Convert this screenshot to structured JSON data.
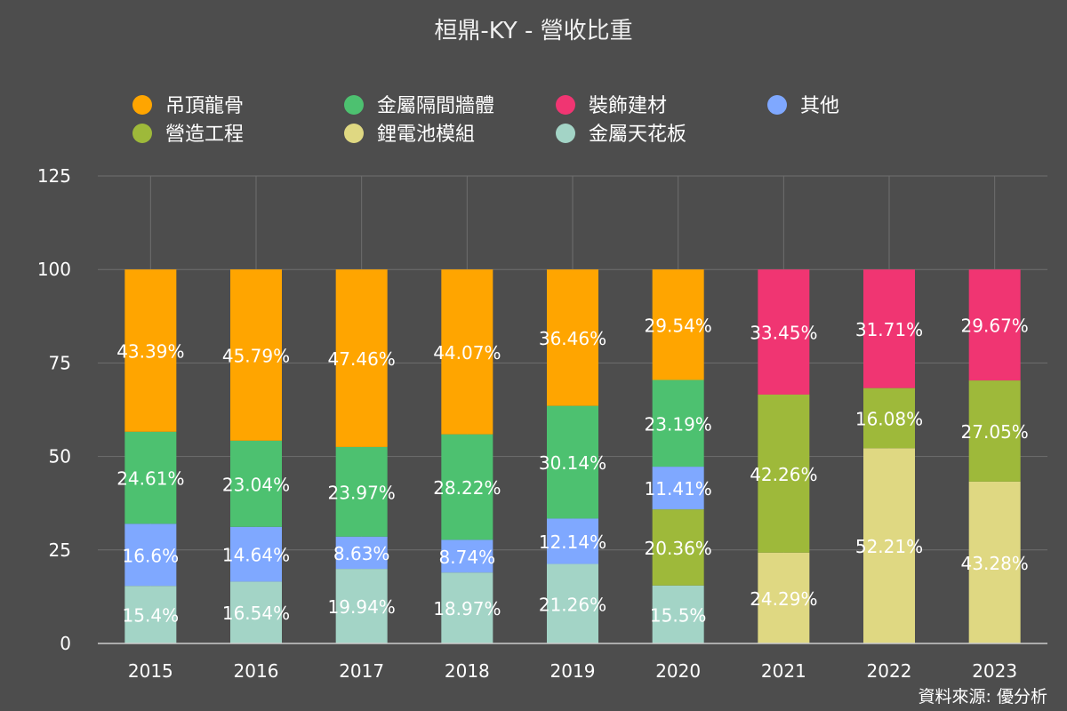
{
  "chart_data": {
    "type": "bar",
    "stacked": true,
    "title": "桓鼎-KY - 營收比重",
    "source": "資料來源: 優分析",
    "categories": [
      "2015",
      "2016",
      "2017",
      "2018",
      "2019",
      "2020",
      "2021",
      "2022",
      "2023"
    ],
    "ylim": [
      0,
      125
    ],
    "yticks": [
      0,
      25,
      50,
      75,
      100,
      125
    ],
    "grid": true,
    "legend_position": "top",
    "series": [
      {
        "name": "金屬天花板",
        "color": "#a3d4c6",
        "values": [
          15.4,
          16.54,
          19.94,
          18.97,
          21.26,
          15.5,
          null,
          null,
          null
        ],
        "labels": [
          "15.4%",
          "16.54%",
          "19.94%",
          "18.97%",
          "21.26%",
          "15.5%",
          null,
          null,
          null
        ]
      },
      {
        "name": "鋰電池模組",
        "color": "#dfd882",
        "values": [
          null,
          null,
          null,
          null,
          null,
          null,
          24.29,
          52.21,
          43.28
        ],
        "labels": [
          null,
          null,
          null,
          null,
          null,
          null,
          "24.29%",
          "52.21%",
          "43.28%"
        ]
      },
      {
        "name": "營造工程",
        "color": "#9eb93a",
        "values": [
          null,
          null,
          null,
          null,
          null,
          20.36,
          42.26,
          16.08,
          27.05
        ],
        "labels": [
          null,
          null,
          null,
          null,
          null,
          "20.36%",
          "42.26%",
          "16.08%",
          "27.05%"
        ]
      },
      {
        "name": "其他",
        "color": "#7fa8ff",
        "values": [
          16.6,
          14.64,
          8.63,
          8.74,
          12.14,
          11.41,
          null,
          null,
          null
        ],
        "labels": [
          "16.6%",
          "14.64%",
          "8.63%",
          "8.74%",
          "12.14%",
          "11.41%",
          null,
          null,
          null
        ]
      },
      {
        "name": "金屬隔間牆體",
        "color": "#4dc170",
        "values": [
          24.61,
          23.04,
          23.97,
          28.22,
          30.14,
          23.19,
          null,
          null,
          null
        ],
        "labels": [
          "24.61%",
          "23.04%",
          "23.97%",
          "28.22%",
          "30.14%",
          "23.19%",
          null,
          null,
          null
        ]
      },
      {
        "name": "吊頂龍骨",
        "color": "#ffa500",
        "values": [
          43.39,
          45.79,
          47.46,
          44.07,
          36.46,
          29.54,
          null,
          null,
          null
        ],
        "labels": [
          "43.39%",
          "45.79%",
          "47.46%",
          "44.07%",
          "36.46%",
          "29.54%",
          null,
          null,
          null
        ]
      },
      {
        "name": "裝飾建材",
        "color": "#f03572",
        "values": [
          null,
          null,
          null,
          null,
          null,
          null,
          33.45,
          31.71,
          29.67
        ],
        "labels": [
          null,
          null,
          null,
          null,
          null,
          null,
          "33.45%",
          "31.71%",
          "29.67%"
        ]
      }
    ],
    "legend_order": [
      "吊頂龍骨",
      "金屬隔間牆體",
      "裝飾建材",
      "其他",
      "營造工程",
      "鋰電池模組",
      "金屬天花板"
    ]
  }
}
